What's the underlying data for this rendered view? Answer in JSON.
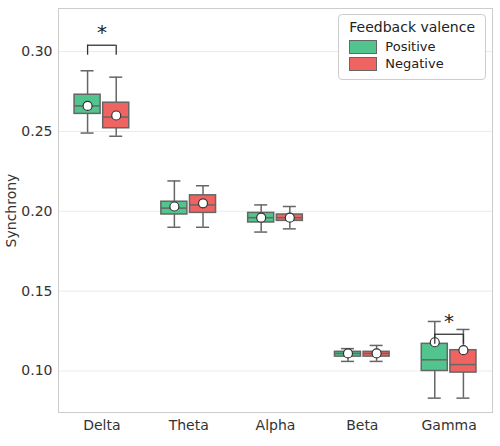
{
  "chart_data": {
    "type": "box",
    "y_label": "Synchrony",
    "categories": [
      "Delta",
      "Theta",
      "Alpha",
      "Beta",
      "Gamma"
    ],
    "ylim": [
      0.074,
      0.327
    ],
    "yticks": [
      {
        "value": 0.1,
        "label": "0.10"
      },
      {
        "value": 0.15,
        "label": "0.15"
      },
      {
        "value": 0.2,
        "label": "0.20"
      },
      {
        "value": 0.25,
        "label": "0.25"
      },
      {
        "value": 0.3,
        "label": "0.30"
      }
    ],
    "grid": true,
    "legend": "top-right",
    "legend_title": "Feedback valence",
    "series": [
      {
        "name": "Positive",
        "color": "#52c48e",
        "whisker_low": [
          0.249,
          0.19,
          0.187,
          0.106,
          0.083
        ],
        "q1": [
          0.261,
          0.198,
          0.193,
          0.109,
          0.1
        ],
        "median": [
          0.266,
          0.202,
          0.196,
          0.111,
          0.107
        ],
        "q3": [
          0.273,
          0.206,
          0.199,
          0.112,
          0.117
        ],
        "whisker_high": [
          0.288,
          0.219,
          0.204,
          0.114,
          0.131
        ],
        "mean": [
          0.266,
          0.203,
          0.196,
          0.111,
          0.118
        ]
      },
      {
        "name": "Negative",
        "color": "#ef6461",
        "whisker_low": [
          0.247,
          0.19,
          0.189,
          0.106,
          0.083
        ],
        "q1": [
          0.252,
          0.199,
          0.194,
          0.109,
          0.099
        ],
        "median": [
          0.259,
          0.204,
          0.196,
          0.111,
          0.104
        ],
        "q3": [
          0.268,
          0.21,
          0.198,
          0.112,
          0.113
        ],
        "whisker_high": [
          0.284,
          0.216,
          0.203,
          0.116,
          0.126
        ],
        "mean": [
          0.26,
          0.205,
          0.196,
          0.111,
          0.113
        ]
      }
    ],
    "annotations": [
      {
        "text": "*",
        "category": "Delta",
        "y": 0.304
      },
      {
        "text": "*",
        "category": "Gamma",
        "y": 0.123
      }
    ]
  }
}
